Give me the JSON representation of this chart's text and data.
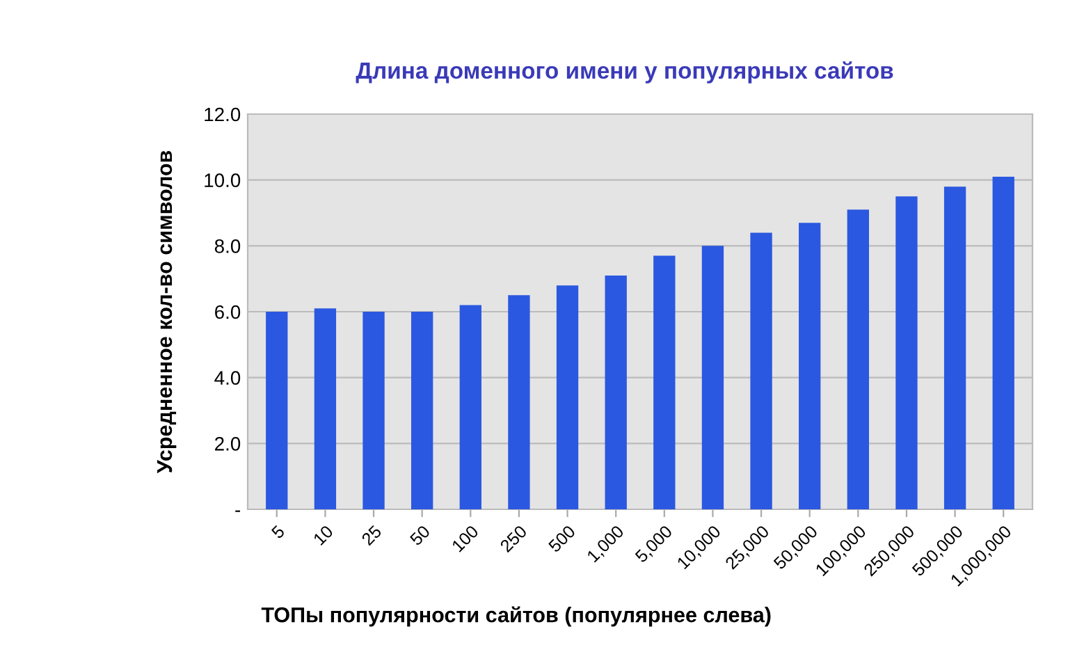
{
  "chart_data": {
    "type": "bar",
    "title": "Длина доменного имени у популярных сайтов",
    "xlabel": "ТОПы популярности сайтов (популярнее слева)",
    "ylabel": "Усредненное кол-во символов",
    "categories": [
      "5",
      "10",
      "25",
      "50",
      "100",
      "250",
      "500",
      "1,000",
      "5,000",
      "10,000",
      "25,000",
      "50,000",
      "100,000",
      "250,000",
      "500,000",
      "1,000,000"
    ],
    "values": [
      6.0,
      6.1,
      6.0,
      6.0,
      6.2,
      6.5,
      6.8,
      7.1,
      7.7,
      8.0,
      8.4,
      8.7,
      9.1,
      9.5,
      9.8,
      10.1
    ],
    "color": "#2b58e0",
    "ylim": [
      0,
      12
    ],
    "yticks": [
      {
        "value": 0,
        "label": "-"
      },
      {
        "value": 2,
        "label": "2.0"
      },
      {
        "value": 4,
        "label": "4.0"
      },
      {
        "value": 6,
        "label": "6.0"
      },
      {
        "value": 8,
        "label": "8.0"
      },
      {
        "value": 10,
        "label": "10.0"
      },
      {
        "value": 12,
        "label": "12.0"
      }
    ],
    "grid": "y",
    "legend": false
  }
}
